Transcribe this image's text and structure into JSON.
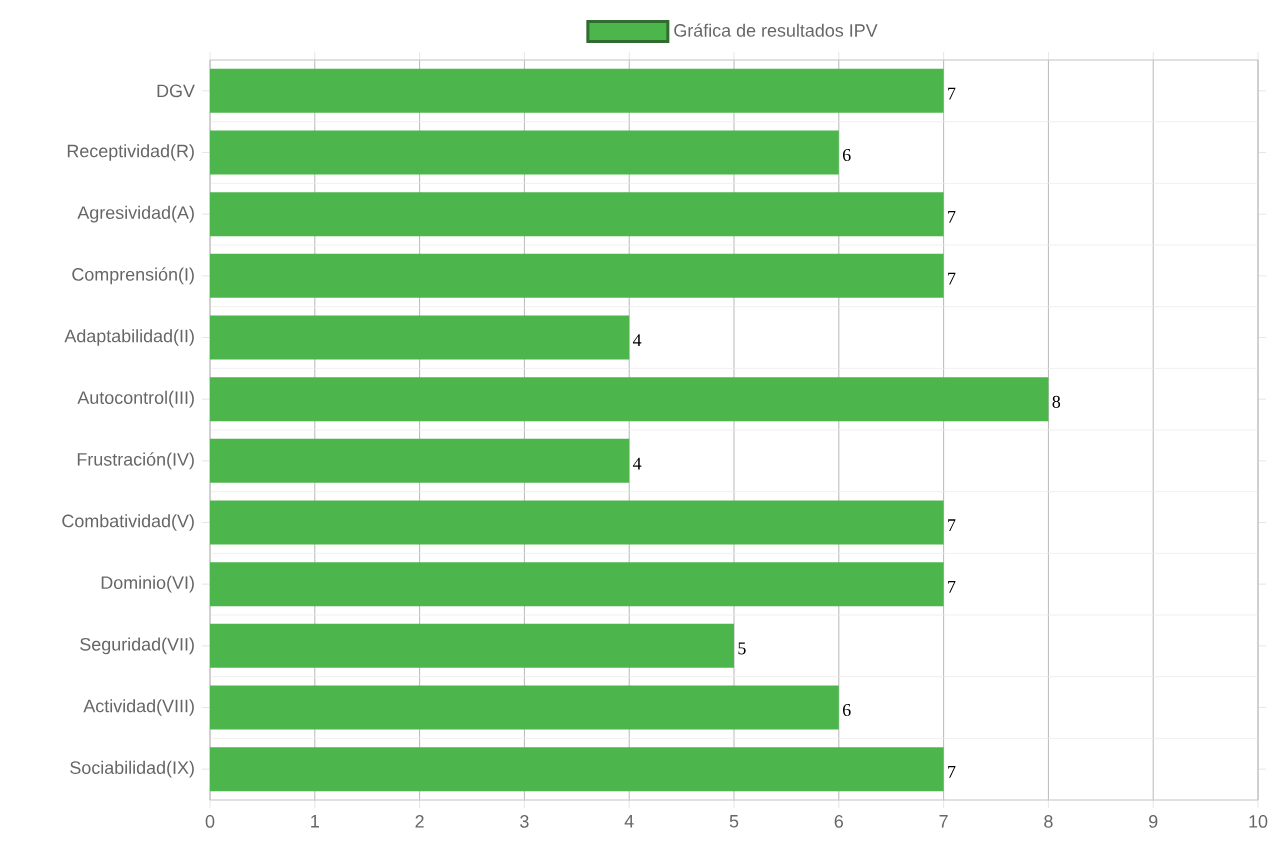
{
  "chart_data": {
    "type": "bar",
    "orientation": "horizontal",
    "categories": [
      "DGV",
      "Receptividad(R)",
      "Agresividad(A)",
      "Comprensión(I)",
      "Adaptabilidad(II)",
      "Autocontrol(III)",
      "Frustración(IV)",
      "Combatividad(V)",
      "Dominio(VI)",
      "Seguridad(VII)",
      "Actividad(VIII)",
      "Sociabilidad(IX)"
    ],
    "series": [
      {
        "name": "Gráfica de resultados IPV",
        "color": "#4cb54c",
        "values": [
          7,
          6,
          7,
          7,
          4,
          8,
          4,
          7,
          7,
          5,
          6,
          7
        ]
      }
    ],
    "xlim": [
      0,
      10
    ],
    "xticks": [
      0,
      1,
      2,
      3,
      4,
      5,
      6,
      7,
      8,
      9,
      10
    ],
    "grid": true,
    "legend": "top",
    "data_labels": true
  }
}
